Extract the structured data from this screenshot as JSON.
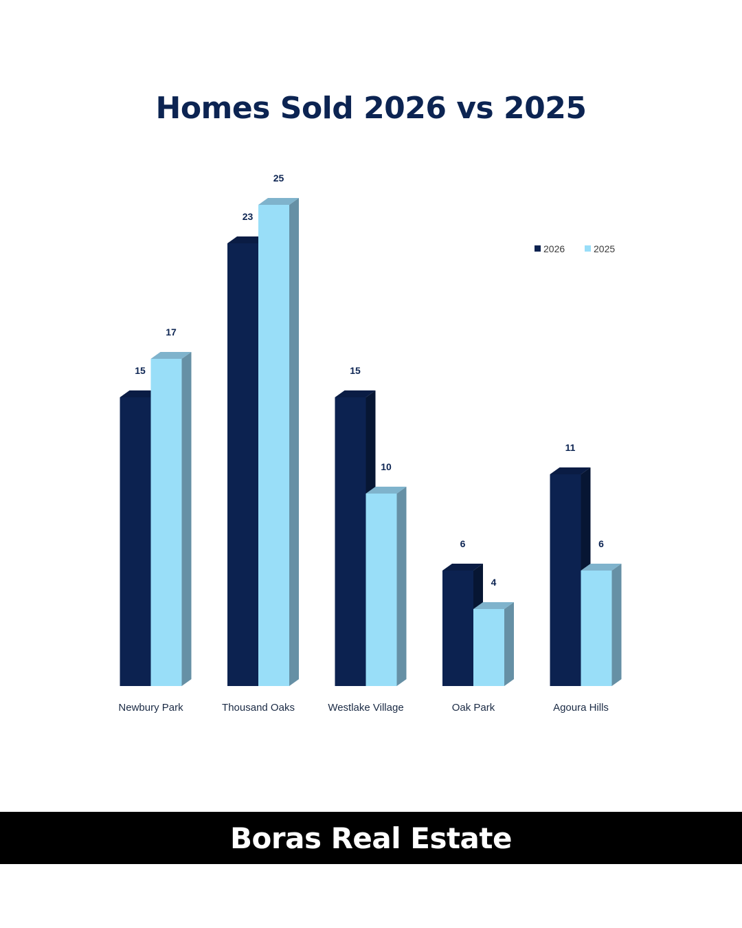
{
  "title": "Homes Sold 2026 vs 2025",
  "footer": "Boras Real Estate",
  "colors": {
    "series_2026_front": "#0c2250",
    "series_2026_side": "#071633",
    "series_2026_top": "#0a1c44",
    "series_2025_front": "#99def8",
    "series_2025_side": "#6690a5",
    "series_2025_top": "#7fb3cc",
    "label_text": "#0c2452",
    "footer_bg": "#000000",
    "footer_text": "#ffffff"
  },
  "chart_data": {
    "type": "bar",
    "title": "Homes Sold 2026 vs 2025",
    "categories": [
      "Newbury Park",
      "Thousand Oaks",
      "Westlake Village",
      "Oak Park",
      "Agoura Hills"
    ],
    "series": [
      {
        "name": "2026",
        "values": [
          15,
          23,
          15,
          6,
          11
        ]
      },
      {
        "name": "2025",
        "values": [
          17,
          25,
          10,
          4,
          6
        ]
      }
    ],
    "ylim": [
      0,
      25
    ],
    "grid": false,
    "legend_position": "top-right",
    "data_labels": true
  }
}
